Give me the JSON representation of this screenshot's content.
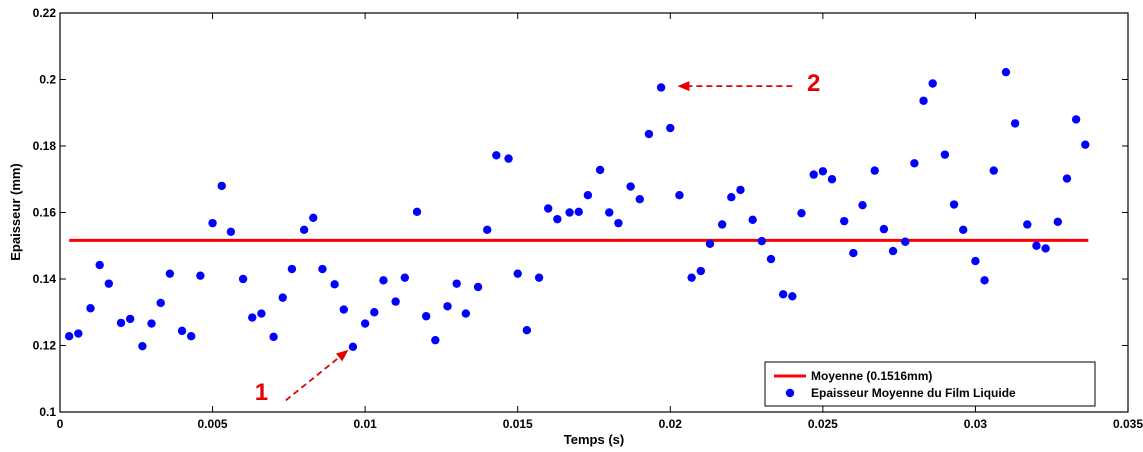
{
  "chart_data": {
    "type": "scatter",
    "xlabel": "Temps (s)",
    "ylabel": "Epaisseur (mm)",
    "xlim": [
      0,
      0.035
    ],
    "ylim": [
      0.1,
      0.22
    ],
    "x_ticks": [
      "0",
      "0.005",
      "0.01",
      "0.015",
      "0.02",
      "0.025",
      "0.03",
      "0.035"
    ],
    "y_ticks": [
      "0.1",
      "0.12",
      "0.14",
      "0.16",
      "0.18",
      "0.2",
      "0.22"
    ],
    "grid": false,
    "legend_position": "bottom-right",
    "series": [
      {
        "name": "Moyenne  (0.1516mm)",
        "kind": "line",
        "color": "#ff0000",
        "x": [
          0.0003,
          0.0337
        ],
        "y": [
          0.1516,
          0.1516
        ]
      },
      {
        "name": "Epaisseur Moyenne du Film Liquide",
        "kind": "scatter",
        "color": "#0000ff",
        "points": [
          [
            0.0003,
            0.1228
          ],
          [
            0.0006,
            0.1236
          ],
          [
            0.001,
            0.1312
          ],
          [
            0.0013,
            0.1442
          ],
          [
            0.0016,
            0.1386
          ],
          [
            0.002,
            0.1268
          ],
          [
            0.0023,
            0.128
          ],
          [
            0.0027,
            0.1198
          ],
          [
            0.003,
            0.1266
          ],
          [
            0.0033,
            0.1328
          ],
          [
            0.0036,
            0.1416
          ],
          [
            0.004,
            0.1244
          ],
          [
            0.0043,
            0.1228
          ],
          [
            0.0046,
            0.141
          ],
          [
            0.005,
            0.1568
          ],
          [
            0.0053,
            0.168
          ],
          [
            0.0056,
            0.1542
          ],
          [
            0.006,
            0.14
          ],
          [
            0.0063,
            0.1284
          ],
          [
            0.0066,
            0.1296
          ],
          [
            0.007,
            0.1226
          ],
          [
            0.0073,
            0.1344
          ],
          [
            0.0076,
            0.143
          ],
          [
            0.008,
            0.1548
          ],
          [
            0.0083,
            0.1584
          ],
          [
            0.0086,
            0.143
          ],
          [
            0.009,
            0.1384
          ],
          [
            0.0093,
            0.1308
          ],
          [
            0.0096,
            0.1196
          ],
          [
            0.01,
            0.1266
          ],
          [
            0.0103,
            0.13
          ],
          [
            0.0106,
            0.1396
          ],
          [
            0.011,
            0.1332
          ],
          [
            0.0113,
            0.1404
          ],
          [
            0.0117,
            0.1602
          ],
          [
            0.012,
            0.1288
          ],
          [
            0.0123,
            0.1216
          ],
          [
            0.0127,
            0.1318
          ],
          [
            0.013,
            0.1386
          ],
          [
            0.0133,
            0.1296
          ],
          [
            0.0137,
            0.1376
          ],
          [
            0.014,
            0.1548
          ],
          [
            0.0143,
            0.1772
          ],
          [
            0.0147,
            0.1762
          ],
          [
            0.015,
            0.1416
          ],
          [
            0.0153,
            0.1246
          ],
          [
            0.0157,
            0.1404
          ],
          [
            0.016,
            0.1612
          ],
          [
            0.0163,
            0.158
          ],
          [
            0.0167,
            0.16
          ],
          [
            0.017,
            0.1602
          ],
          [
            0.0173,
            0.1652
          ],
          [
            0.0177,
            0.1728
          ],
          [
            0.018,
            0.16
          ],
          [
            0.0183,
            0.1568
          ],
          [
            0.0187,
            0.1678
          ],
          [
            0.019,
            0.164
          ],
          [
            0.0193,
            0.1836
          ],
          [
            0.0197,
            0.1976
          ],
          [
            0.02,
            0.1854
          ],
          [
            0.0203,
            0.1652
          ],
          [
            0.0207,
            0.1404
          ],
          [
            0.021,
            0.1424
          ],
          [
            0.0213,
            0.1506
          ],
          [
            0.0217,
            0.1564
          ],
          [
            0.022,
            0.1646
          ],
          [
            0.0223,
            0.1668
          ],
          [
            0.0227,
            0.1578
          ],
          [
            0.023,
            0.1514
          ],
          [
            0.0233,
            0.146
          ],
          [
            0.0237,
            0.1354
          ],
          [
            0.024,
            0.1348
          ],
          [
            0.0243,
            0.1598
          ],
          [
            0.0247,
            0.1714
          ],
          [
            0.025,
            0.1724
          ],
          [
            0.0253,
            0.17
          ],
          [
            0.0257,
            0.1574
          ],
          [
            0.026,
            0.1478
          ],
          [
            0.0263,
            0.1622
          ],
          [
            0.0267,
            0.1726
          ],
          [
            0.027,
            0.155
          ],
          [
            0.0273,
            0.1484
          ],
          [
            0.0277,
            0.1512
          ],
          [
            0.028,
            0.1748
          ],
          [
            0.0283,
            0.1936
          ],
          [
            0.0286,
            0.1988
          ],
          [
            0.029,
            0.1774
          ],
          [
            0.0293,
            0.1624
          ],
          [
            0.0296,
            0.1548
          ],
          [
            0.03,
            0.1454
          ],
          [
            0.0303,
            0.1396
          ],
          [
            0.0306,
            0.1726
          ],
          [
            0.031,
            0.2022
          ],
          [
            0.0313,
            0.1868
          ],
          [
            0.0317,
            0.1564
          ],
          [
            0.032,
            0.15
          ],
          [
            0.0323,
            0.1492
          ],
          [
            0.0327,
            0.1572
          ],
          [
            0.033,
            0.1702
          ],
          [
            0.0333,
            0.188
          ],
          [
            0.0336,
            0.1804
          ]
        ]
      }
    ],
    "annotations": [
      {
        "text": "1",
        "color": "#e60000",
        "arrow_from": [
          0.0074,
          0.1035
        ],
        "arrow_to": [
          0.0094,
          0.1183
        ],
        "text_at": [
          0.0066,
          0.1036
        ]
      },
      {
        "text": "2",
        "color": "#e60000",
        "arrow_from": [
          0.024,
          0.198
        ],
        "arrow_to": [
          0.0203,
          0.198
        ],
        "text_at": [
          0.0247,
          0.1965
        ]
      }
    ]
  }
}
